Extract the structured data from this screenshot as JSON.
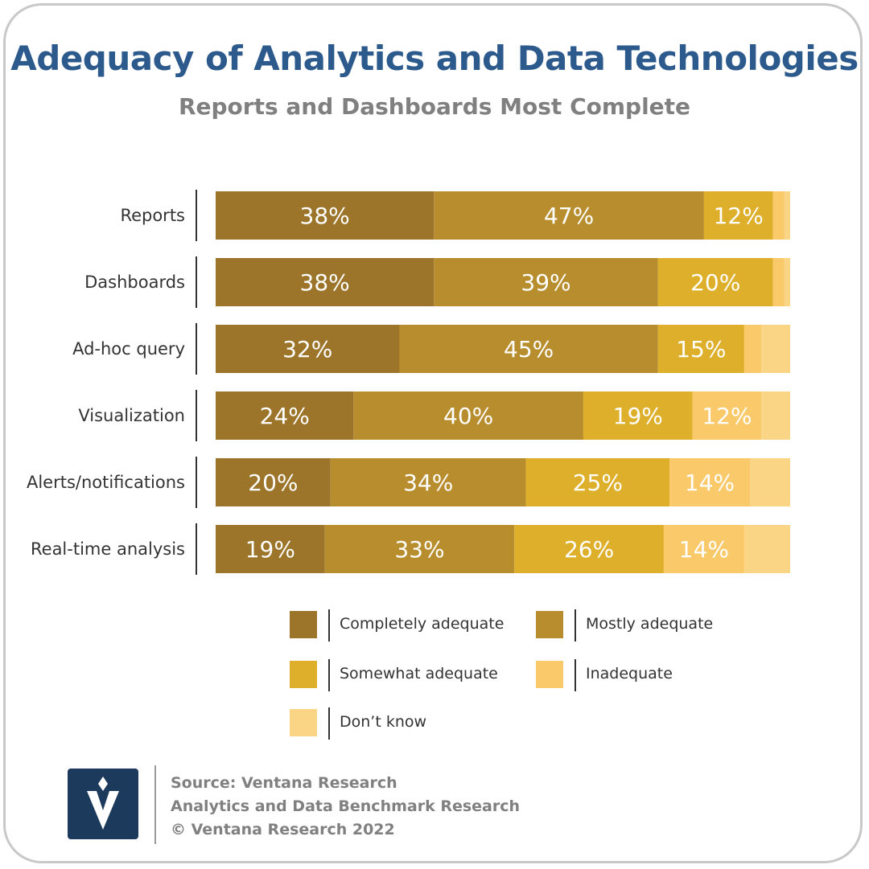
{
  "title": "Adequacy of Analytics and Data Technologies",
  "subtitle": "Reports and Dashboards Most Complete",
  "chart_data": {
    "type": "bar",
    "orientation": "horizontal",
    "stacked": true,
    "categories": [
      "Reports",
      "Dashboards",
      "Ad-hoc query",
      "Visualization",
      "Alerts/notifications",
      "Real-time analysis"
    ],
    "series": [
      {
        "name": "Completely adequate",
        "color": "#9c742a",
        "values": [
          38,
          38,
          32,
          24,
          20,
          19
        ],
        "labels": [
          "38%",
          "38%",
          "32%",
          "24%",
          "20%",
          "19%"
        ]
      },
      {
        "name": "Mostly adequate",
        "color": "#b88d2e",
        "values": [
          47,
          39,
          45,
          40,
          34,
          33
        ],
        "labels": [
          "47%",
          "39%",
          "45%",
          "40%",
          "34%",
          "33%"
        ]
      },
      {
        "name": "Somewhat adequate",
        "color": "#deaf2a",
        "values": [
          12,
          20,
          15,
          19,
          25,
          26
        ],
        "labels": [
          "12%",
          "20%",
          "15%",
          "19%",
          "25%",
          "26%"
        ]
      },
      {
        "name": "Inadequate",
        "color": "#f9c96a",
        "values": [
          2,
          2,
          3,
          12,
          14,
          14
        ],
        "labels": [
          "",
          "",
          "",
          "12%",
          "14%",
          "14%"
        ]
      },
      {
        "name": "Don’t know",
        "color": "#fbd586",
        "values": [
          1,
          1,
          5,
          5,
          7,
          8
        ],
        "labels": [
          "",
          "",
          "",
          "",
          "",
          ""
        ]
      }
    ],
    "xlim": [
      0,
      100
    ],
    "legend_position": "bottom"
  },
  "legend": [
    {
      "label": "Completely  adequate",
      "color": "#9c742a"
    },
    {
      "label": "Mostly  adequate",
      "color": "#b88d2e"
    },
    {
      "label": "Somewhat adequate",
      "color": "#deaf2a"
    },
    {
      "label": "Inadequate",
      "color": "#f9c96a"
    },
    {
      "label": "Don’t know",
      "color": "#fbd586"
    }
  ],
  "footer": {
    "line1": "Source: Ventana Research",
    "line2": "Analytics and Data Benchmark Research",
    "line3": "© Ventana Research 2022",
    "logo_icon": "ventana-v-logo-icon"
  }
}
